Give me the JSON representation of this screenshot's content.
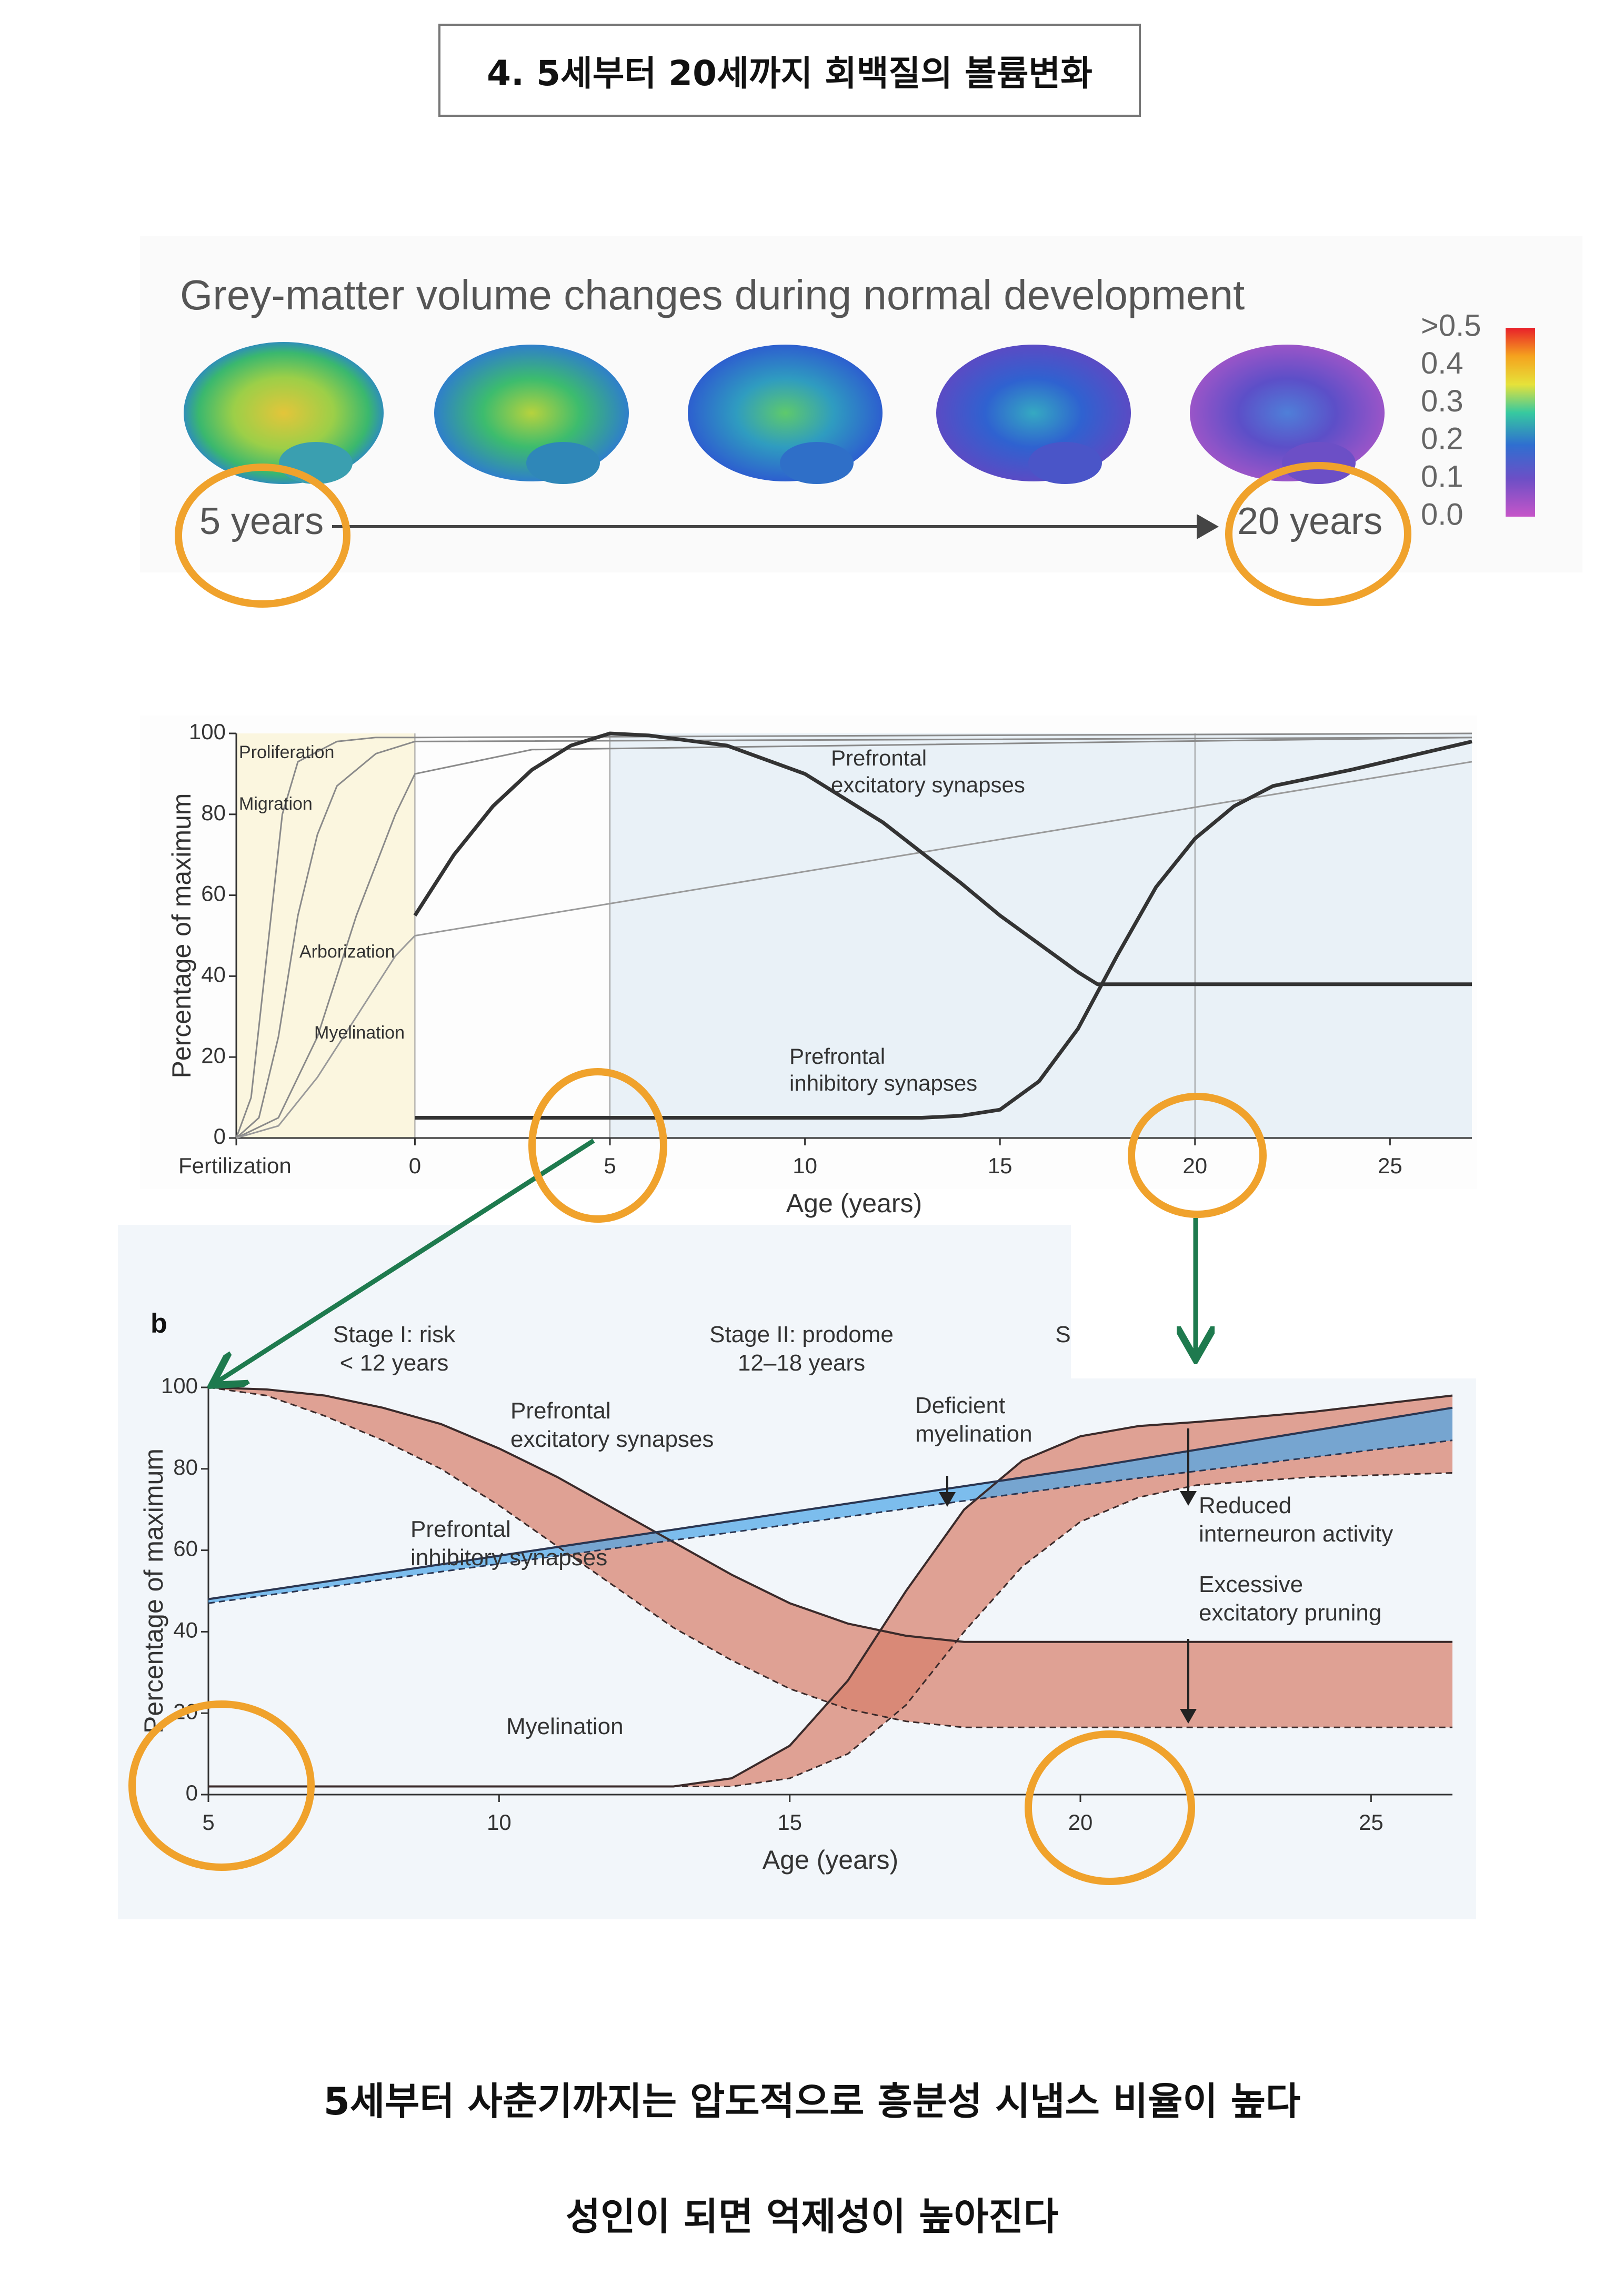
{
  "header": {
    "title": "4. 5세부터 20세까지 회백질의 볼륨변화"
  },
  "brain_figure": {
    "title": "Grey-matter volume changes during normal development",
    "start_label": "5 years",
    "end_label": "20 years",
    "colorbar": {
      "lim": [
        0,
        0.5
      ],
      "ticks": [
        {
          "value": 0.5,
          "label": ">0.5"
        },
        {
          "value": 0.4,
          "label": "0.4"
        },
        {
          "value": 0.3,
          "label": "0.3"
        },
        {
          "value": 0.2,
          "label": "0.2"
        },
        {
          "value": 0.1,
          "label": "0.1"
        },
        {
          "value": 0,
          "label": "0.0"
        }
      ]
    }
  },
  "chart_data": [
    {
      "type": "line",
      "x_label": "Age (years)",
      "y_label": "Percentage of maximum",
      "xlim": [
        -4.58,
        27.1
      ],
      "ylim": [
        0,
        100
      ],
      "xticks": [
        {
          "value": -4.58,
          "label": "Fertilization"
        },
        0,
        5,
        10,
        15,
        20,
        25
      ],
      "yticks": [
        0,
        20,
        40,
        60,
        80,
        100
      ],
      "series": [
        {
          "name": "Proliferation",
          "color": "#8a8a8a",
          "x": [
            -4.58,
            -4.2,
            -3.8,
            -3.4,
            -3,
            -2,
            -1,
            0,
            27.1
          ],
          "values": [
            0,
            10,
            45,
            80,
            93,
            98,
            99,
            99,
            100
          ]
        },
        {
          "name": "Migration",
          "color": "#8a8a8a",
          "x": [
            -4.58,
            -4,
            -3.5,
            -3,
            -2.5,
            -2,
            -1,
            0,
            27.1
          ],
          "values": [
            0,
            5,
            25,
            55,
            75,
            87,
            95,
            98,
            99
          ]
        },
        {
          "name": "Arborization",
          "color": "#8a8a8a",
          "x": [
            -4.58,
            -3.5,
            -2.5,
            -1.5,
            -0.5,
            0,
            3,
            27.1
          ],
          "values": [
            0,
            5,
            25,
            55,
            80,
            90,
            96,
            99
          ]
        },
        {
          "name": "Myelination",
          "color": "#9a9a9a",
          "x": [
            -4.58,
            -3.5,
            -2.5,
            -1.5,
            -0.5,
            0,
            27.1
          ],
          "values": [
            0,
            3,
            15,
            30,
            45,
            50,
            93
          ]
        },
        {
          "name": "Prefrontal\nexcitatory synapses",
          "color": "#333333",
          "x": [
            0,
            1,
            2,
            3,
            4,
            5,
            6,
            8,
            10,
            12,
            14,
            15,
            16,
            17,
            17.5,
            27.1
          ],
          "values": [
            55,
            70,
            82,
            91,
            97,
            100,
            99.5,
            97,
            90,
            78,
            63,
            55,
            48,
            41,
            38,
            38
          ]
        },
        {
          "name": "Prefrontal\ninhibitory synapses",
          "color": "#333333",
          "x": [
            0,
            13,
            14,
            15,
            16,
            17,
            18,
            19,
            20,
            21,
            22,
            24,
            27.1
          ],
          "values": [
            5,
            5,
            5.5,
            7,
            14,
            27,
            45,
            62,
            74,
            82,
            87,
            91,
            98
          ]
        }
      ]
    },
    {
      "type": "band",
      "panel_label": "b",
      "stages": [
        "Stage I: risk\n< 12 years",
        "Stage II: prodome\n12–18 years",
        "S"
      ],
      "x_label": "Age (years)",
      "y_label": "Percentage of maximum",
      "xlim": [
        5,
        26.4
      ],
      "ylim": [
        0,
        100
      ],
      "xticks": [
        5,
        10,
        15,
        20,
        25
      ],
      "yticks": [
        0,
        20,
        40,
        60,
        80,
        100
      ],
      "series": [
        {
          "name": "Prefrontal\nexcitatory synapses",
          "color": "#3a2a2a",
          "fill": "#d77f6c",
          "x": [
            5,
            6,
            7,
            8,
            9,
            10,
            11,
            12,
            13,
            14,
            15,
            16,
            17,
            18,
            26.4
          ],
          "values": [
            100,
            99.5,
            98,
            95,
            91,
            85,
            78,
            70,
            62,
            54,
            47,
            42,
            39,
            37.5,
            37.5
          ],
          "deficient_values": [
            100,
            98,
            93,
            87,
            80,
            71,
            61,
            51,
            41,
            33,
            26,
            21,
            18,
            16.5,
            16.5
          ]
        },
        {
          "name": "Prefrontal\ninhibitory synapses",
          "color": "#3a2a2a",
          "fill": "#d77f6c",
          "x": [
            5,
            13,
            14,
            15,
            16,
            17,
            18,
            19,
            20,
            21,
            22,
            24,
            26.4
          ],
          "values": [
            2,
            2,
            4,
            12,
            28,
            50,
            70,
            82,
            88,
            90.5,
            91.5,
            94,
            98
          ],
          "deficient_values": [
            2,
            2,
            2,
            4,
            10,
            22,
            40,
            56,
            67,
            73,
            76,
            78,
            79
          ]
        },
        {
          "name": "Myelination",
          "color": "#2a3550",
          "fill": "#4ea6e8",
          "x": [
            5,
            20,
            26.4
          ],
          "values": [
            48,
            80,
            95
          ],
          "deficient_values": [
            47,
            76,
            87
          ]
        }
      ],
      "annotations": [
        "Deficient\nmyelination",
        "Reduced\ninterneuron activity",
        "Excessive\nexcitatory pruning"
      ]
    }
  ],
  "captions": [
    "5세부터 사춘기까지는 압도적으로 흥분성 시냅스 비율이 높다",
    "성인이 되면 억제성이 높아진다"
  ]
}
